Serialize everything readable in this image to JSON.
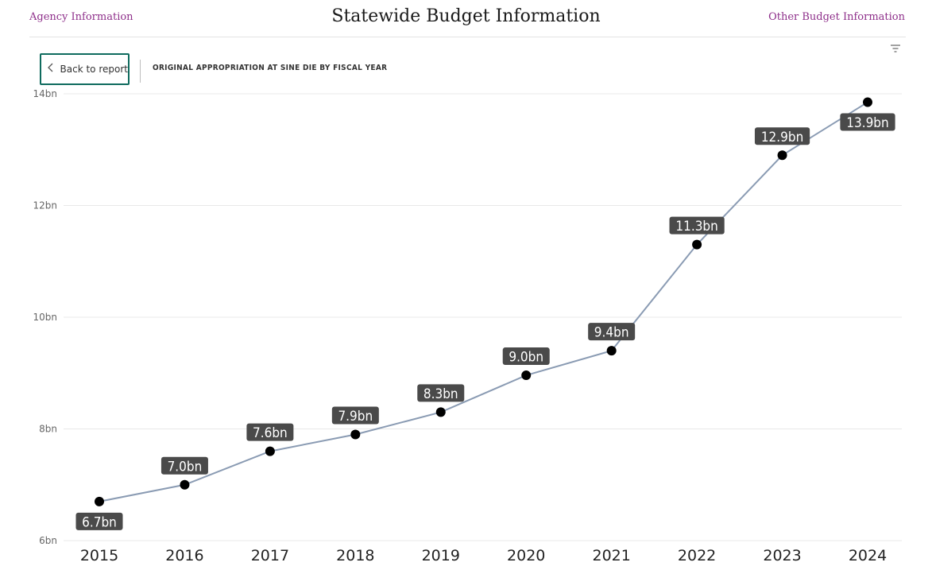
{
  "header": {
    "left_link": "Agency Information",
    "title": "Statewide Budget Information",
    "right_link": "Other Budget Information"
  },
  "toolbar": {
    "back_label": "Back to report",
    "back_icon": "chevron-left-icon",
    "visual_title": "ORIGINAL APPROPRIATION AT SINE DIE BY FISCAL YEAR",
    "filter_icon": "filter-icon"
  },
  "colors": {
    "link": "#8e2f8a",
    "back_border": "#0f6b5e",
    "line": "#8a9bb3",
    "marker": "#000000",
    "label_bg": "#4a4a4a",
    "gridline": "#e8e8e8"
  },
  "chart_data": {
    "type": "line",
    "title": "ORIGINAL APPROPRIATION AT SINE DIE BY FISCAL YEAR",
    "xlabel": "",
    "ylabel": "",
    "categories": [
      "2015",
      "2016",
      "2017",
      "2018",
      "2019",
      "2020",
      "2021",
      "2022",
      "2023",
      "2024"
    ],
    "series": [
      {
        "name": "Original Appropriation at Sine Die",
        "values": [
          6.7,
          7.0,
          7.6,
          7.9,
          8.3,
          8.96,
          9.4,
          11.3,
          12.9,
          13.85
        ],
        "labels": [
          "6.7bn",
          "7.0bn",
          "7.6bn",
          "7.9bn",
          "8.3bn",
          "9.0bn",
          "9.4bn",
          "11.3bn",
          "12.9bn",
          "13.9bn"
        ],
        "label_position": [
          "below",
          "above",
          "above",
          "above",
          "above",
          "above",
          "above",
          "above",
          "above",
          "below"
        ]
      }
    ],
    "yticks": [
      6,
      8,
      10,
      12,
      14
    ],
    "ytick_labels": [
      "6bn",
      "8bn",
      "10bn",
      "12bn",
      "14bn"
    ],
    "ylim": [
      6,
      14
    ],
    "grid": true,
    "legend": "none"
  }
}
